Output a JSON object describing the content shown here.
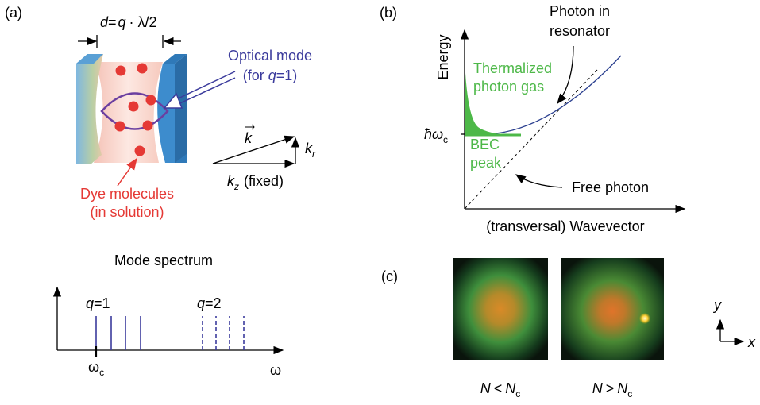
{
  "panel_a": {
    "label": "(a)",
    "spacing": {
      "d": "d",
      "eq": "=",
      "q": "q",
      "rest": "· λ/2"
    },
    "optical_mode": {
      "line1": "Optical mode",
      "line2_open": "(for ",
      "q": "q",
      "line2_rest": "=1)"
    },
    "dye": {
      "line1": "Dye molecules",
      "line2": "(in solution)"
    },
    "vectors": {
      "k": "k",
      "kr_base": "k",
      "kr_sub": "r",
      "kz_base": "k",
      "kz_sub": "z",
      "kz_note": "(fixed)"
    },
    "spectrum": {
      "title": "Mode spectrum",
      "q1_var": "q",
      "q1_rest": "=1",
      "q2_var": "q",
      "q2_rest": "=2",
      "omega_c_base": "ω",
      "omega_c_sub": "c",
      "omega": "ω"
    }
  },
  "panel_b": {
    "label": "(b)",
    "y_axis": "Energy",
    "x_axis": "(transversal) Wavevector",
    "resonator": {
      "line1": "Photon in",
      "line2": "resonator"
    },
    "thermal": {
      "line1": "Thermalized",
      "line2": "photon gas"
    },
    "bec": {
      "line1": "BEC",
      "line2": "peak"
    },
    "free": "Free photon",
    "hw_base": "ħω",
    "hw_sub": "c"
  },
  "panel_c": {
    "label": "(c)",
    "left": {
      "n": "N",
      "op": "<",
      "nc": "N",
      "sub": "c"
    },
    "right": {
      "n": "N",
      "op": ">",
      "nc": "N",
      "sub": "c"
    },
    "axis_y": "y",
    "axis_x": "x"
  }
}
